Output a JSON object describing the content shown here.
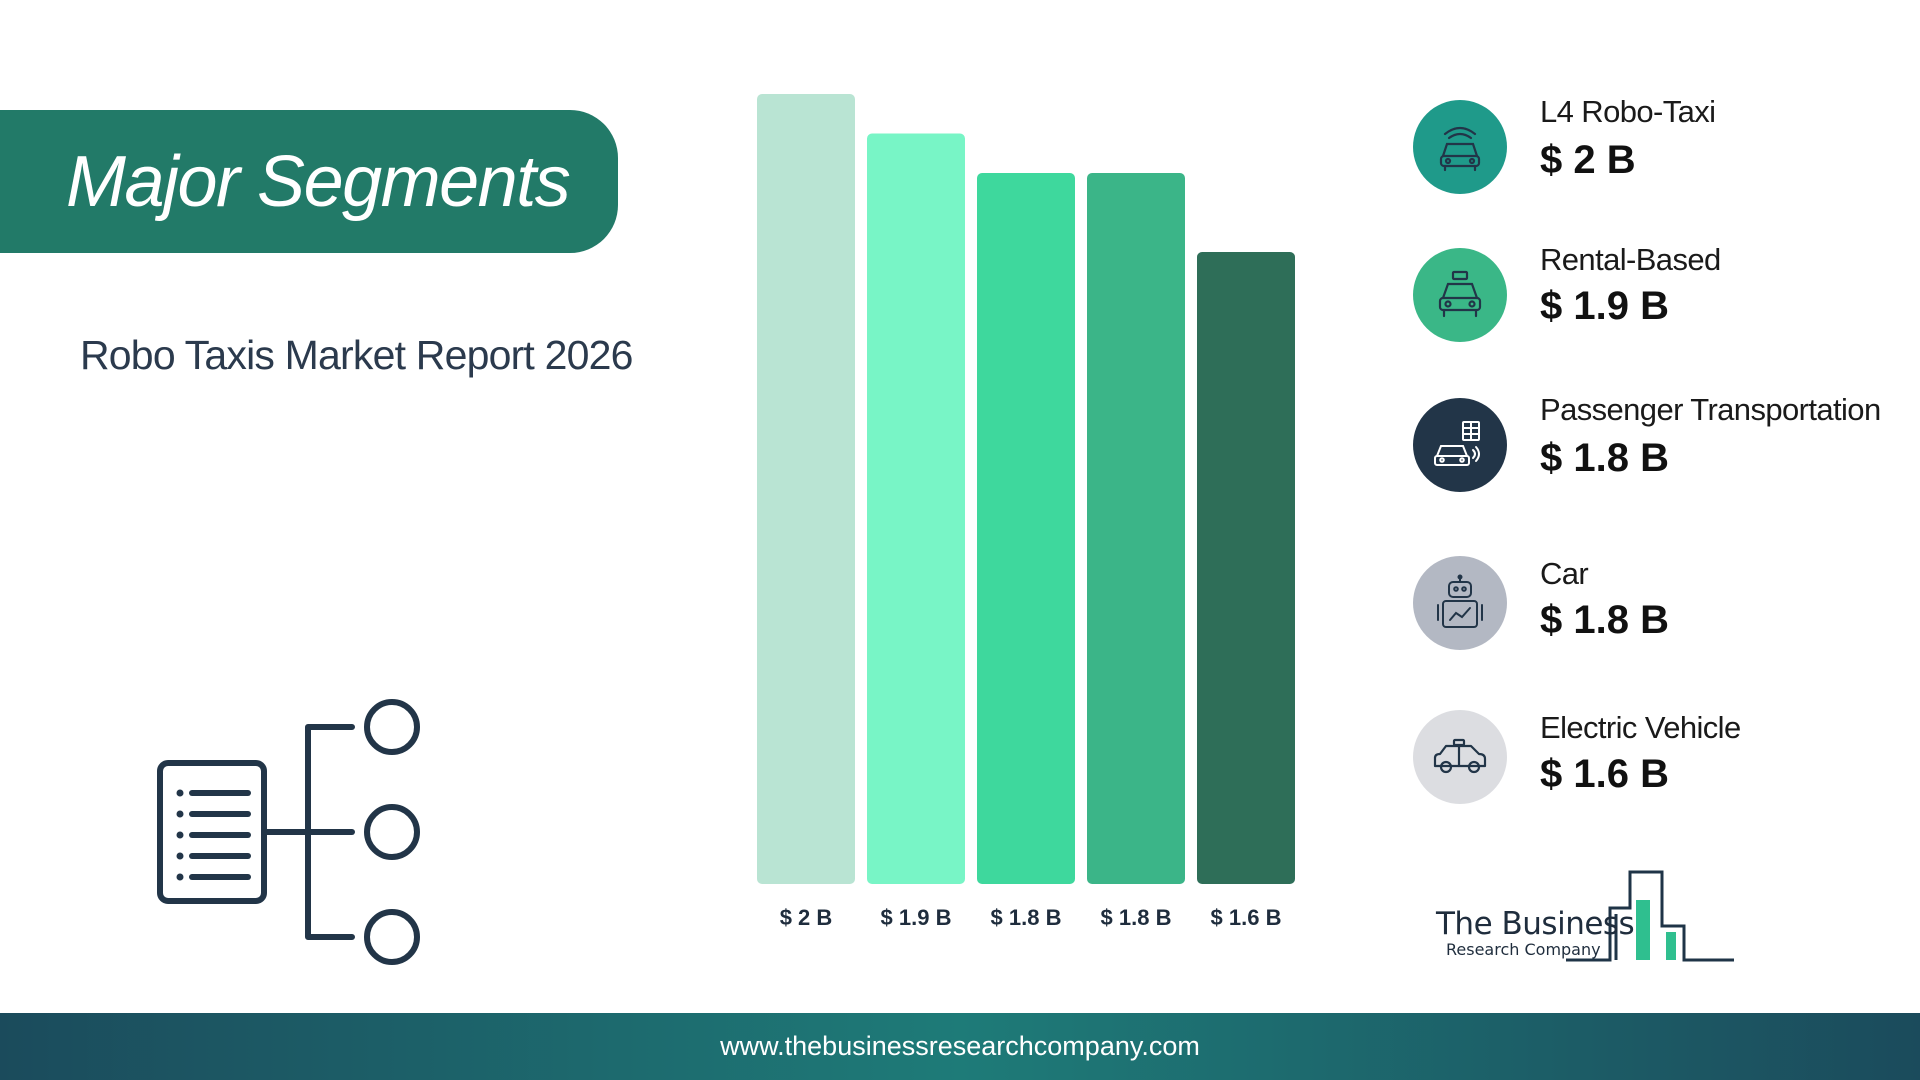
{
  "header": {
    "title": "Major Segments",
    "subtitle": "Robo Taxis Market Report 2026"
  },
  "chart_data": {
    "type": "bar",
    "categories": [
      "L4 Robo-Taxi",
      "Rental-Based",
      "Passenger Transportation",
      "Car",
      "Electric Vehicle"
    ],
    "values": [
      2.0,
      1.9,
      1.8,
      1.8,
      1.6
    ],
    "value_labels": [
      "$ 2 B",
      "$ 1.9 B",
      "$ 1.8 B",
      "$ 1.8 B",
      "$ 1.6 B"
    ],
    "colors": [
      "#b9e4d3",
      "#78f5c6",
      "#3ed89d",
      "#3bb588",
      "#2e6e58"
    ],
    "unit": "USD Billion",
    "ylim": [
      0,
      2.0
    ],
    "grid": false
  },
  "legend": {
    "items": [
      {
        "name": "L4 Robo-Taxi",
        "value": "$ 2 B",
        "icon": "robo-taxi-icon",
        "color": "#1f9a8a"
      },
      {
        "name": "Rental-Based",
        "value": "$ 1.9 B",
        "icon": "taxi-car-icon",
        "color": "#3ab787"
      },
      {
        "name": "Passenger Transportation",
        "value": "$ 1.8 B",
        "icon": "connected-car-icon",
        "color": "#223548"
      },
      {
        "name": "Car",
        "value": "$ 1.8 B",
        "icon": "robot-icon",
        "color": "#b3b8c3"
      },
      {
        "name": "Electric Vehicle",
        "value": "$ 1.6 B",
        "icon": "taxi-side-icon",
        "color": "#dcdde1"
      }
    ]
  },
  "logo": {
    "line1": "The Business",
    "line2": "Research Company"
  },
  "footer": {
    "url": "www.thebusinessresearchcompany.com"
  }
}
